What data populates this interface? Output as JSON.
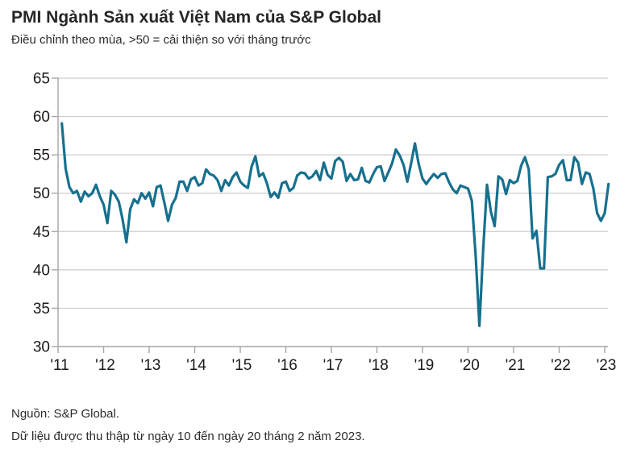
{
  "header": {
    "title": "PMI Ngành Sản xuất Việt Nam của S&P Global",
    "subtitle": "Điều chỉnh theo mùa, >50 = cải thiện so với tháng trước"
  },
  "footer": {
    "source": "Nguồn: S&P Global.",
    "note": "Dữ liệu được thu thập từ ngày 10 đến ngày 20 tháng 2 năm 2023."
  },
  "style": {
    "line_color": "#17708E",
    "grid_color": "#cdcdcd",
    "axis_color": "#a6a6a6",
    "label_color": "#1a1a1a"
  },
  "chart_data": {
    "type": "line",
    "title": "PMI Ngành Sản xuất Việt Nam của S&P Global",
    "subtitle": "Điều chỉnh theo mùa, >50 = cải thiện so với tháng trước",
    "xlabel": "",
    "ylabel": "",
    "ylim": [
      30,
      65
    ],
    "yticks": [
      30,
      35,
      40,
      45,
      50,
      55,
      60,
      65
    ],
    "xticks": [
      "'11",
      "'12",
      "'13",
      "'14",
      "'15",
      "'16",
      "'17",
      "'18",
      "'19",
      "'20",
      "'21",
      "'22",
      "'23"
    ],
    "grid": "horizontal",
    "legend": "none",
    "frequency": "monthly",
    "series": [
      {
        "name": "PMI",
        "color": "#17708E",
        "start": "2011-02",
        "values": [
          59.1,
          53.2,
          50.8,
          50.0,
          50.3,
          48.9,
          50.2,
          49.6,
          50.0,
          51.1,
          49.6,
          48.5,
          46.1,
          50.3,
          49.8,
          48.9,
          46.6,
          43.6,
          47.9,
          49.2,
          48.7,
          50.0,
          49.3,
          50.1,
          48.3,
          50.8,
          51.0,
          48.8,
          46.4,
          48.5,
          49.4,
          51.5,
          51.5,
          50.3,
          51.8,
          52.1,
          51.0,
          51.3,
          53.1,
          52.5,
          52.3,
          51.7,
          50.3,
          51.7,
          51.0,
          52.1,
          52.7,
          51.5,
          51.0,
          50.7,
          53.5,
          54.8,
          52.2,
          52.6,
          51.3,
          49.5,
          50.1,
          49.4,
          51.3,
          51.5,
          50.3,
          50.7,
          52.3,
          52.7,
          52.6,
          51.9,
          52.2,
          52.9,
          51.7,
          54.0,
          52.4,
          51.9,
          54.2,
          54.6,
          54.1,
          51.6,
          52.5,
          51.7,
          51.8,
          53.3,
          51.6,
          51.4,
          52.5,
          53.4,
          53.5,
          51.6,
          52.7,
          53.9,
          55.7,
          54.9,
          53.7,
          51.5,
          53.9,
          56.5,
          53.8,
          51.9,
          51.2,
          51.9,
          52.5,
          52.0,
          52.5,
          52.6,
          51.4,
          50.5,
          50.0,
          51.0,
          50.8,
          50.6,
          49.0,
          41.9,
          32.7,
          42.7,
          51.1,
          47.6,
          45.7,
          52.2,
          51.8,
          49.9,
          51.7,
          51.3,
          51.6,
          53.6,
          54.7,
          53.1,
          44.1,
          45.1,
          40.2,
          40.2,
          52.1,
          52.2,
          52.5,
          53.7,
          54.3,
          51.7,
          51.7,
          54.7,
          54.0,
          51.2,
          52.7,
          52.5,
          50.6,
          47.4,
          46.4,
          47.4,
          51.2
        ]
      }
    ]
  }
}
